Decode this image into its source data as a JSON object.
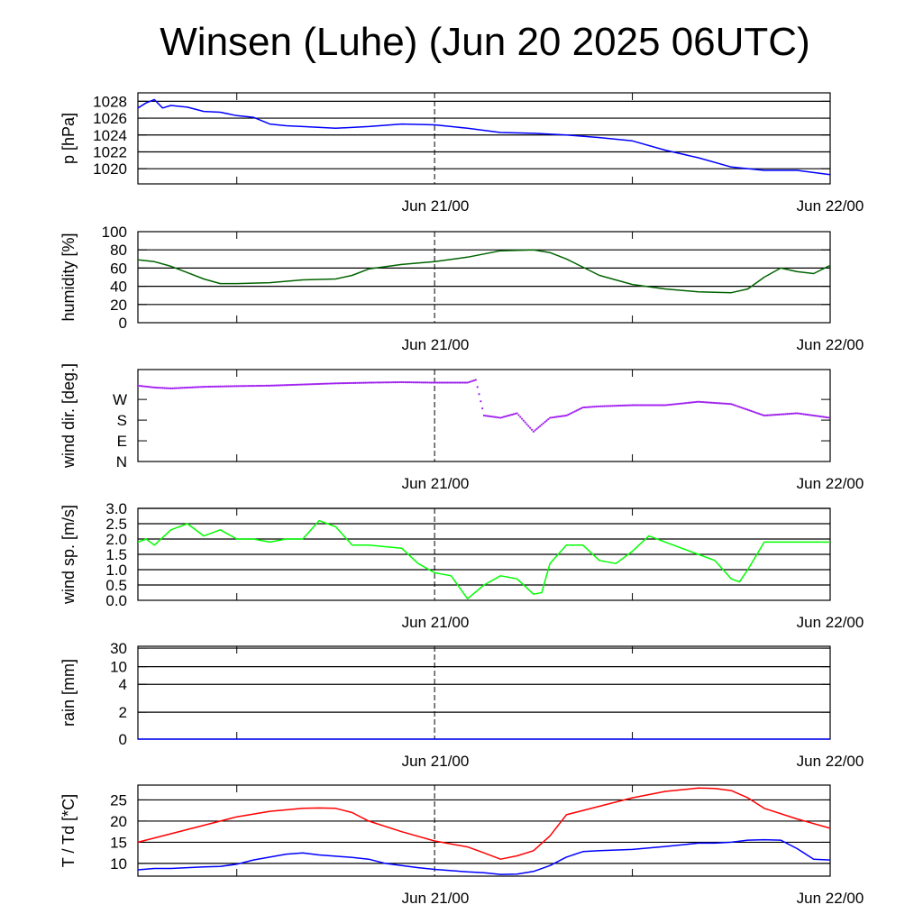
{
  "title": "Winsen (Luhe) (Jun 20 2025 06UTC)",
  "chart_data": [
    {
      "id": "pressure",
      "type": "line",
      "ylabel": "p [hPa]",
      "ylim": [
        1018.2,
        1029.0
      ],
      "yticks": [
        1020,
        1022,
        1024,
        1026,
        1028
      ],
      "ytick_labels": [
        "1020",
        "1022",
        "1024",
        "1026",
        "1028"
      ],
      "gridlines": [
        1020,
        1022,
        1024,
        1026,
        1028
      ],
      "x_labels": [
        "Jun 21/00",
        "Jun 22/00"
      ],
      "series": [
        {
          "color": "#0000ff",
          "x": [
            0,
            0.5,
            1,
            1.5,
            2,
            3,
            4,
            5,
            6,
            7,
            8,
            9,
            10,
            12,
            14,
            16,
            18,
            20,
            22,
            24,
            26,
            28,
            30,
            32,
            34,
            36,
            38,
            40,
            42
          ],
          "y": [
            1027.2,
            1027.8,
            1028.2,
            1027.2,
            1027.5,
            1027.3,
            1026.8,
            1026.7,
            1026.3,
            1026.1,
            1025.3,
            1025.1,
            1025.0,
            1024.8,
            1025.0,
            1025.3,
            1025.2,
            1024.8,
            1024.3,
            1024.2,
            1024.0,
            1023.7,
            1023.3,
            1022.2,
            1021.3,
            1020.2,
            1019.8,
            1019.8,
            1019.3
          ]
        }
      ]
    },
    {
      "id": "humidity",
      "type": "line",
      "ylabel": "humidity [%]",
      "ylim": [
        0,
        100
      ],
      "yticks": [
        0,
        20,
        40,
        60,
        80,
        100
      ],
      "ytick_labels": [
        "0",
        "20",
        "40",
        "60",
        "80",
        "100"
      ],
      "gridlines": [
        20,
        40,
        60,
        80
      ],
      "x_labels": [
        "Jun 21/00",
        "Jun 22/00"
      ],
      "series": [
        {
          "color": "#006400",
          "x": [
            0,
            1,
            2,
            3,
            4,
            5,
            6,
            8,
            10,
            12,
            13,
            14,
            16,
            18,
            20,
            22,
            24,
            25,
            26,
            28,
            30,
            32,
            34,
            36,
            37,
            38,
            39,
            40,
            41,
            42
          ],
          "y": [
            69,
            67,
            62,
            55,
            48,
            43,
            43,
            44,
            47,
            48,
            52,
            59,
            64,
            67,
            72,
            79,
            80,
            77,
            70,
            52,
            42,
            37,
            34,
            33,
            37,
            50,
            60,
            56,
            54,
            63
          ]
        }
      ]
    },
    {
      "id": "wind_direction",
      "type": "scatter",
      "ylabel": "wind dir. [deg.]",
      "ylim": [
        0,
        400
      ],
      "yticks": [
        0,
        90,
        180,
        270
      ],
      "ytick_labels": [
        "N",
        "E",
        "S",
        "W"
      ],
      "gridlines": [],
      "x_labels": [
        "Jun 21/00",
        "Jun 22/00"
      ],
      "series": [
        {
          "color": "#a020f0",
          "x": [
            0,
            1,
            2,
            4,
            6,
            8,
            10,
            12,
            14,
            16,
            18,
            20,
            20.5,
            21,
            22,
            23,
            24,
            25,
            26,
            27,
            28,
            30,
            32,
            34,
            36,
            38,
            40,
            41,
            42
          ],
          "y": [
            330,
            322,
            318,
            325,
            328,
            330,
            335,
            340,
            343,
            345,
            343,
            343,
            355,
            200,
            190,
            210,
            130,
            190,
            200,
            235,
            240,
            245,
            245,
            260,
            250,
            200,
            210,
            200,
            190
          ]
        }
      ]
    },
    {
      "id": "wind_speed",
      "type": "line",
      "ylabel": "wind sp. [m/s]",
      "ylim": [
        0,
        3.0
      ],
      "yticks": [
        0,
        0.5,
        1.0,
        1.5,
        2.0,
        2.5,
        3.0
      ],
      "ytick_labels": [
        "0.0",
        "0.5",
        "1.0",
        "1.5",
        "2.0",
        "2.5",
        "3.0"
      ],
      "gridlines": [
        0.5,
        1.0,
        1.5,
        2.0,
        2.5,
        3.0
      ],
      "x_labels": [
        "Jun 21/00",
        "Jun 22/00"
      ],
      "series": [
        {
          "color": "#00ff00",
          "x": [
            0,
            0.5,
            1,
            2,
            3,
            4,
            5,
            6,
            7,
            8,
            9,
            10,
            11,
            12,
            13,
            14,
            16,
            17,
            18,
            19,
            20,
            21,
            22,
            23,
            24,
            24.5,
            25,
            26,
            27,
            28,
            29,
            30,
            31,
            32,
            34,
            35,
            36,
            36.5,
            37,
            38,
            40,
            42
          ],
          "y": [
            1.9,
            2.0,
            1.8,
            2.3,
            2.5,
            2.1,
            2.3,
            2.0,
            2.0,
            1.9,
            2.0,
            2.0,
            2.6,
            2.4,
            1.8,
            1.8,
            1.7,
            1.2,
            0.9,
            0.8,
            0.05,
            0.5,
            0.8,
            0.7,
            0.2,
            0.25,
            1.2,
            1.8,
            1.8,
            1.3,
            1.2,
            1.6,
            2.1,
            1.9,
            1.5,
            1.3,
            0.7,
            0.6,
            1.0,
            1.9,
            1.9,
            1.9
          ]
        }
      ]
    },
    {
      "id": "rain",
      "type": "line",
      "ylabel": "rain [mm]",
      "ylim": [
        0,
        30
      ],
      "yticks": [
        0,
        2,
        4,
        10,
        30
      ],
      "ytick_labels": [
        "0",
        "2",
        "4",
        "10",
        "30"
      ],
      "gridlines": [
        2,
        4,
        10,
        30
      ],
      "x_labels": [
        "Jun 21/00",
        "Jun 22/00"
      ],
      "series": [
        {
          "color": "#0000ff",
          "x": [
            0,
            42
          ],
          "y": [
            0,
            0
          ]
        }
      ]
    },
    {
      "id": "temperature",
      "type": "line",
      "ylabel": "T / Td [*C]",
      "ylim": [
        7,
        28.5
      ],
      "yticks": [
        10,
        15,
        20,
        25
      ],
      "ytick_labels": [
        "10",
        "15",
        "20",
        "25"
      ],
      "gridlines": [
        10,
        15,
        20,
        25
      ],
      "x_labels": [
        "Jun 21/00",
        "Jun 22/00"
      ],
      "series": [
        {
          "color": "#ff0000",
          "x": [
            0,
            2,
            4,
            6,
            8,
            10,
            11,
            12,
            13,
            14,
            16,
            18,
            20,
            21,
            22,
            23,
            24,
            25,
            26,
            28,
            30,
            32,
            34,
            35,
            36,
            37,
            38,
            40,
            42
          ],
          "y": [
            15,
            17,
            19,
            21,
            22.3,
            23,
            23.1,
            23,
            22,
            20,
            17.5,
            15.3,
            13.9,
            12.5,
            11,
            11.8,
            13,
            16.5,
            21.5,
            23.5,
            25.5,
            27,
            27.8,
            27.7,
            27.2,
            25.5,
            23,
            20.5,
            18.3
          ]
        },
        {
          "color": "#0000ff",
          "x": [
            0,
            1,
            2,
            3,
            4,
            5,
            6,
            7,
            8,
            9,
            10,
            11,
            12,
            13,
            14,
            15,
            16,
            17,
            18,
            19,
            20,
            21,
            22,
            23,
            24,
            25,
            26,
            27,
            28,
            30,
            32,
            34,
            35,
            36,
            37,
            38,
            39,
            40,
            41,
            42
          ],
          "y": [
            8.5,
            8.8,
            8.8,
            9.0,
            9.2,
            9.3,
            9.8,
            10.8,
            11.5,
            12.2,
            12.5,
            12.0,
            11.7,
            11.4,
            11.0,
            10.0,
            9.5,
            9.0,
            8.6,
            8.3,
            8.0,
            7.8,
            7.4,
            7.5,
            8.1,
            9.5,
            11.5,
            12.8,
            13.0,
            13.3,
            14.0,
            14.8,
            14.8,
            15.0,
            15.5,
            15.6,
            15.5,
            13.5,
            11.0,
            10.8
          ]
        }
      ]
    }
  ]
}
